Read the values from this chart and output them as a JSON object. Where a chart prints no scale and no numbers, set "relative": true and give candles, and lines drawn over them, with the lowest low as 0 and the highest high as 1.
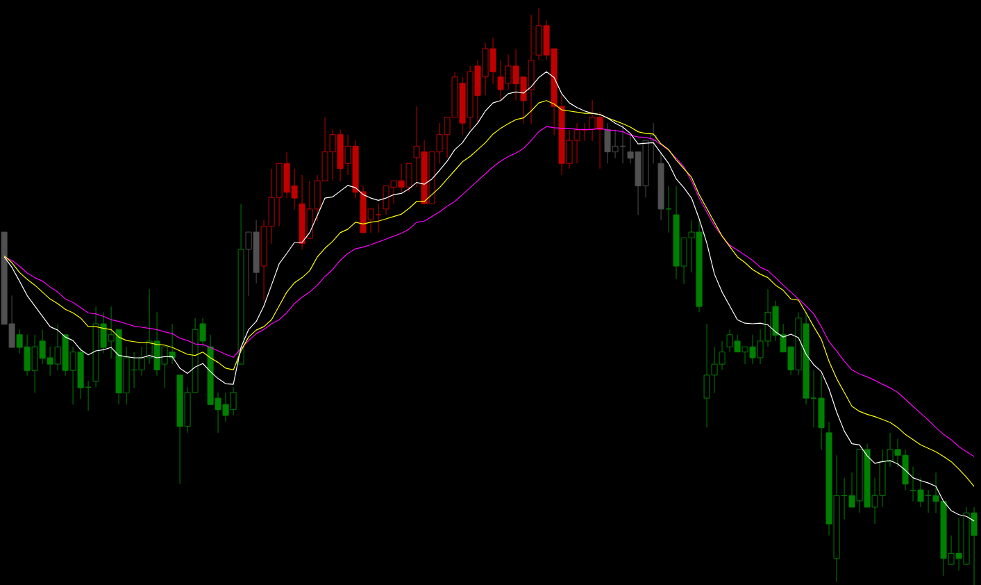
{
  "chart_data": {
    "type": "candlestick",
    "relative": true,
    "categories": [
      null,
      null,
      null,
      null,
      null,
      null,
      null,
      null,
      null,
      null,
      null,
      null,
      null,
      null,
      null,
      null,
      null,
      null,
      null,
      null,
      null,
      null,
      null,
      null,
      null,
      null,
      null,
      null,
      null,
      null,
      null,
      null,
      null,
      null,
      null,
      null,
      null,
      null,
      null,
      null,
      null,
      null,
      null,
      null,
      null,
      null,
      null,
      null,
      null,
      null,
      null,
      null,
      null,
      null,
      null,
      null,
      null,
      null,
      null,
      null,
      null,
      null,
      null,
      null,
      null,
      null,
      null,
      null,
      null,
      null,
      null,
      null,
      null,
      null,
      null,
      null,
      null,
      null,
      null,
      null,
      null,
      null,
      null,
      null,
      null,
      null,
      null,
      null,
      null,
      null,
      null,
      null,
      null,
      null,
      null,
      null,
      null,
      null,
      null,
      null,
      null,
      null,
      null,
      null,
      null,
      null,
      null,
      null,
      null,
      null,
      null,
      null,
      null,
      null,
      null,
      null,
      null,
      null,
      null,
      null,
      null,
      null,
      null,
      null,
      null,
      null,
      null,
      null
    ],
    "ohlc": [
      [
        0.612,
        0.612,
        0.452,
        0.452
      ],
      [
        0.453,
        0.502,
        0.412,
        0.412
      ],
      [
        0.434,
        0.443,
        0.402,
        0.412
      ],
      [
        0.413,
        0.434,
        0.363,
        0.372
      ],
      [
        0.372,
        0.434,
        0.333,
        0.413
      ],
      [
        0.423,
        0.443,
        0.383,
        0.393
      ],
      [
        0.394,
        0.413,
        0.363,
        0.383
      ],
      [
        0.383,
        0.453,
        0.372,
        0.413
      ],
      [
        0.434,
        0.434,
        0.363,
        0.372
      ],
      [
        0.372,
        0.413,
        0.313,
        0.404
      ],
      [
        0.404,
        0.413,
        0.323,
        0.342
      ],
      [
        0.343,
        0.354,
        0.302,
        0.343
      ],
      [
        0.353,
        0.483,
        0.343,
        0.453
      ],
      [
        0.453,
        0.473,
        0.402,
        0.412
      ],
      [
        0.423,
        0.483,
        0.393,
        0.434
      ],
      [
        0.443,
        0.443,
        0.313,
        0.333
      ],
      [
        0.333,
        0.413,
        0.313,
        0.394
      ],
      [
        0.373,
        0.404,
        0.342,
        0.373
      ],
      [
        0.373,
        0.413,
        0.363,
        0.394
      ],
      [
        0.394,
        0.513,
        0.383,
        0.423
      ],
      [
        0.423,
        0.473,
        0.363,
        0.373
      ],
      [
        0.383,
        0.413,
        0.342,
        0.413
      ],
      [
        0.404,
        0.453,
        0.383,
        0.394
      ],
      [
        0.364,
        0.364,
        0.175,
        0.275
      ],
      [
        0.275,
        0.343,
        0.264,
        0.334
      ],
      [
        0.334,
        0.463,
        0.334,
        0.443
      ],
      [
        0.453,
        0.463,
        0.413,
        0.423
      ],
      [
        0.413,
        0.434,
        0.313,
        0.313
      ],
      [
        0.324,
        0.334,
        0.264,
        0.304
      ],
      [
        0.313,
        0.334,
        0.283,
        0.294
      ],
      [
        0.304,
        0.343,
        0.294,
        0.334
      ],
      [
        0.383,
        0.661,
        0.383,
        0.582
      ],
      [
        0.582,
        0.612,
        0.501,
        0.612
      ],
      [
        0.612,
        0.633,
        0.523,
        0.542
      ],
      [
        0.553,
        0.633,
        0.493,
        0.622
      ],
      [
        0.622,
        0.722,
        0.592,
        0.672
      ],
      [
        0.672,
        0.731,
        0.622,
        0.731
      ],
      [
        0.731,
        0.751,
        0.671,
        0.681
      ],
      [
        0.692,
        0.722,
        0.651,
        0.671
      ],
      [
        0.661,
        0.711,
        0.582,
        0.592
      ],
      [
        0.601,
        0.701,
        0.601,
        0.652
      ],
      [
        0.652,
        0.711,
        0.631,
        0.701
      ],
      [
        0.701,
        0.811,
        0.701,
        0.751
      ],
      [
        0.751,
        0.79,
        0.701,
        0.781
      ],
      [
        0.781,
        0.79,
        0.7,
        0.722
      ],
      [
        0.731,
        0.781,
        0.711,
        0.761
      ],
      [
        0.761,
        0.771,
        0.671,
        0.681
      ],
      [
        0.682,
        0.692,
        0.611,
        0.611
      ],
      [
        0.633,
        0.652,
        0.611,
        0.652
      ],
      [
        0.642,
        0.661,
        0.611,
        0.642
      ],
      [
        0.652,
        0.692,
        0.642,
        0.692
      ],
      [
        0.69,
        0.701,
        0.661,
        0.701
      ],
      [
        0.701,
        0.731,
        0.681,
        0.69
      ],
      [
        0.69,
        0.731,
        0.681,
        0.731
      ],
      [
        0.741,
        0.83,
        0.69,
        0.761
      ],
      [
        0.751,
        0.771,
        0.661,
        0.661
      ],
      [
        0.661,
        0.751,
        0.661,
        0.751
      ],
      [
        0.751,
        0.801,
        0.731,
        0.781
      ],
      [
        0.781,
        0.811,
        0.741,
        0.811
      ],
      [
        0.811,
        0.89,
        0.811,
        0.881
      ],
      [
        0.87,
        0.881,
        0.781,
        0.801
      ],
      [
        0.811,
        0.9,
        0.79,
        0.89
      ],
      [
        0.9,
        0.91,
        0.801,
        0.849
      ],
      [
        0.881,
        0.94,
        0.849,
        0.93
      ],
      [
        0.93,
        0.949,
        0.869,
        0.89
      ],
      [
        0.881,
        0.91,
        0.842,
        0.859
      ],
      [
        0.87,
        0.92,
        0.859,
        0.9
      ],
      [
        0.9,
        0.93,
        0.84,
        0.869
      ],
      [
        0.881,
        0.881,
        0.8,
        0.84
      ],
      [
        0.859,
        0.989,
        0.8,
        0.91
      ],
      [
        0.919,
        1.0,
        0.91,
        0.97
      ],
      [
        0.97,
        0.979,
        0.91,
        0.919
      ],
      [
        0.93,
        0.93,
        0.78,
        0.83
      ],
      [
        0.83,
        0.849,
        0.711,
        0.731
      ],
      [
        0.731,
        0.789,
        0.722,
        0.771
      ],
      [
        0.771,
        0.801,
        0.731,
        0.789
      ],
      [
        0.789,
        0.801,
        0.77,
        0.789
      ],
      [
        0.79,
        0.841,
        0.77,
        0.811
      ],
      [
        0.811,
        0.82,
        0.722,
        0.79
      ],
      [
        0.79,
        0.801,
        0.731,
        0.751
      ],
      [
        0.751,
        0.79,
        0.74,
        0.761
      ],
      [
        0.761,
        0.8,
        0.731,
        0.761
      ],
      [
        0.751,
        0.78,
        0.731,
        0.74
      ],
      [
        0.751,
        0.751,
        0.642,
        0.692
      ],
      [
        0.692,
        0.771,
        0.672,
        0.771
      ],
      [
        0.771,
        0.801,
        0.731,
        0.78
      ],
      [
        0.731,
        0.751,
        0.633,
        0.652
      ],
      [
        0.652,
        0.692,
        0.611,
        0.652
      ],
      [
        0.642,
        0.692,
        0.531,
        0.553
      ],
      [
        0.553,
        0.602,
        0.522,
        0.602
      ],
      [
        0.602,
        0.633,
        0.542,
        0.612
      ],
      [
        0.612,
        0.633,
        0.473,
        0.483
      ],
      [
        0.324,
        0.453,
        0.273,
        0.364
      ],
      [
        0.364,
        0.413,
        0.333,
        0.383
      ],
      [
        0.383,
        0.423,
        0.373,
        0.404
      ],
      [
        0.413,
        0.443,
        0.404,
        0.434
      ],
      [
        0.423,
        0.434,
        0.404,
        0.404
      ],
      [
        0.404,
        0.413,
        0.383,
        0.413
      ],
      [
        0.413,
        0.434,
        0.383,
        0.394
      ],
      [
        0.394,
        0.443,
        0.383,
        0.423
      ],
      [
        0.423,
        0.513,
        0.413,
        0.473
      ],
      [
        0.483,
        0.493,
        0.423,
        0.433
      ],
      [
        0.434,
        0.453,
        0.404,
        0.404
      ],
      [
        0.413,
        0.413,
        0.364,
        0.373
      ],
      [
        0.373,
        0.473,
        0.364,
        0.463
      ],
      [
        0.453,
        0.473,
        0.313,
        0.324
      ],
      [
        0.324,
        0.373,
        0.273,
        0.324
      ],
      [
        0.324,
        0.364,
        0.234,
        0.273
      ],
      [
        0.264,
        0.283,
        0.086,
        0.106
      ],
      [
        0.046,
        0.225,
        0.005,
        0.155
      ],
      [
        0.155,
        0.186,
        0.114,
        0.155
      ],
      [
        0.155,
        0.195,
        0.135,
        0.135
      ],
      [
        0.146,
        0.235,
        0.125,
        0.235
      ],
      [
        0.235,
        0.245,
        0.135,
        0.135
      ],
      [
        0.135,
        0.186,
        0.106,
        0.155
      ],
      [
        0.155,
        0.235,
        0.135,
        0.214
      ],
      [
        0.214,
        0.264,
        0.205,
        0.235
      ],
      [
        0.235,
        0.254,
        0.205,
        0.225
      ],
      [
        0.225,
        0.235,
        0.164,
        0.175
      ],
      [
        0.164,
        0.205,
        0.145,
        0.164
      ],
      [
        0.165,
        0.186,
        0.135,
        0.145
      ],
      [
        0.155,
        0.165,
        0.125,
        0.155
      ],
      [
        0.155,
        0.195,
        0.125,
        0.145
      ],
      [
        0.145,
        0.145,
        0.016,
        0.046
      ],
      [
        0.036,
        0.086,
        0.036,
        0.055
      ],
      [
        0.055,
        0.116,
        0.025,
        0.046
      ],
      [
        0.036,
        0.135,
        0.036,
        0.125
      ],
      [
        0.125,
        0.135,
        0.0,
        0.086
      ]
    ],
    "colors": [
      "#505050",
      "#505050",
      "#008000",
      "#008000",
      "#008000",
      "#008000",
      "#008000",
      "#008000",
      "#008000",
      "#008000",
      "#008000",
      "#008000",
      "#008000",
      "#008000",
      "#008000",
      "#008000",
      "#008000",
      "#008000",
      "#008000",
      "#008000",
      "#008000",
      "#008000",
      "#008000",
      "#008000",
      "#008000",
      "#008000",
      "#008000",
      "#008000",
      "#008000",
      "#008000",
      "#008000",
      "#008000",
      "#505050",
      "#505050",
      "#c00000",
      "#c00000",
      "#c00000",
      "#c00000",
      "#c00000",
      "#c00000",
      "#c00000",
      "#c00000",
      "#c00000",
      "#c00000",
      "#c00000",
      "#c00000",
      "#c00000",
      "#c00000",
      "#c00000",
      "#c00000",
      "#c00000",
      "#c00000",
      "#c00000",
      "#c00000",
      "#c00000",
      "#c00000",
      "#c00000",
      "#c00000",
      "#c00000",
      "#c00000",
      "#c00000",
      "#c00000",
      "#c00000",
      "#c00000",
      "#c00000",
      "#c00000",
      "#c00000",
      "#c00000",
      "#c00000",
      "#c00000",
      "#c00000",
      "#c00000",
      "#c00000",
      "#c00000",
      "#c00000",
      "#c00000",
      "#c00000",
      "#c00000",
      "#c00000",
      "#505050",
      "#505050",
      "#505050",
      "#505050",
      "#505050",
      "#505050",
      "#505050",
      "#505050",
      "#008000",
      "#008000",
      "#008000",
      "#008000",
      "#008000",
      "#008000",
      "#008000",
      "#008000",
      "#008000",
      "#008000",
      "#008000",
      "#008000",
      "#008000",
      "#008000",
      "#008000",
      "#008000",
      "#008000",
      "#008000",
      "#008000",
      "#008000",
      "#008000",
      "#008000",
      "#008000",
      "#008000",
      "#008000",
      "#008000",
      "#008000",
      "#008000",
      "#008000",
      "#008000",
      "#008000",
      "#008000",
      "#008000",
      "#008000",
      "#008000",
      "#008000",
      "#008000",
      "#008000",
      "#008000",
      "#008000",
      "#008000"
    ],
    "series": [
      {
        "type": "line",
        "color": "#ff00ff",
        "values": [
          0.569,
          0.563,
          0.553,
          0.541,
          0.533,
          0.527,
          0.517,
          0.508,
          0.496,
          0.49,
          0.481,
          0.472,
          0.47,
          0.466,
          0.46,
          0.457,
          0.453,
          0.449,
          0.447,
          0.445,
          0.443,
          0.439,
          0.436,
          0.428,
          0.424,
          0.418,
          0.417,
          0.412,
          0.406,
          0.4,
          0.395,
          0.41,
          0.424,
          0.436,
          0.443,
          0.453,
          0.46,
          0.472,
          0.488,
          0.499,
          0.508,
          0.52,
          0.535,
          0.547,
          0.563,
          0.575,
          0.583,
          0.586,
          0.59,
          0.595,
          0.6,
          0.605,
          0.61,
          0.617,
          0.629,
          0.631,
          0.639,
          0.647,
          0.657,
          0.665,
          0.677,
          0.689,
          0.701,
          0.713,
          0.725,
          0.735,
          0.743,
          0.749,
          0.757,
          0.771,
          0.786,
          0.795,
          0.793,
          0.792,
          0.792,
          0.79,
          0.79,
          0.79,
          0.792,
          0.789,
          0.788,
          0.786,
          0.78,
          0.777,
          0.776,
          0.773,
          0.764,
          0.754,
          0.74,
          0.725,
          0.701,
          0.671,
          0.647,
          0.623,
          0.605,
          0.589,
          0.581,
          0.572,
          0.563,
          0.551,
          0.545,
          0.533,
          0.52,
          0.508,
          0.496,
          0.484,
          0.47,
          0.448,
          0.422,
          0.406,
          0.388,
          0.373,
          0.366,
          0.361,
          0.355,
          0.348,
          0.342,
          0.334,
          0.322,
          0.31,
          0.298,
          0.286,
          0.273,
          0.261,
          0.252,
          0.24,
          0.231,
          0.223
        ]
      },
      {
        "type": "line",
        "color": "#ffff00",
        "values": [
          0.571,
          0.559,
          0.542,
          0.53,
          0.52,
          0.508,
          0.496,
          0.488,
          0.478,
          0.472,
          0.463,
          0.448,
          0.448,
          0.445,
          0.443,
          0.43,
          0.424,
          0.422,
          0.42,
          0.42,
          0.417,
          0.416,
          0.412,
          0.406,
          0.4,
          0.398,
          0.404,
          0.394,
          0.386,
          0.376,
          0.373,
          0.406,
          0.43,
          0.442,
          0.448,
          0.46,
          0.484,
          0.508,
          0.524,
          0.533,
          0.545,
          0.569,
          0.584,
          0.596,
          0.611,
          0.617,
          0.629,
          0.626,
          0.629,
          0.631,
          0.635,
          0.639,
          0.643,
          0.653,
          0.665,
          0.665,
          0.677,
          0.689,
          0.704,
          0.719,
          0.734,
          0.743,
          0.755,
          0.767,
          0.782,
          0.792,
          0.8,
          0.807,
          0.81,
          0.822,
          0.836,
          0.84,
          0.834,
          0.824,
          0.822,
          0.82,
          0.818,
          0.818,
          0.816,
          0.81,
          0.805,
          0.8,
          0.794,
          0.786,
          0.783,
          0.782,
          0.765,
          0.755,
          0.737,
          0.722,
          0.707,
          0.677,
          0.653,
          0.629,
          0.605,
          0.587,
          0.569,
          0.559,
          0.547,
          0.539,
          0.533,
          0.52,
          0.511,
          0.496,
          0.494,
          0.472,
          0.448,
          0.426,
          0.388,
          0.358,
          0.334,
          0.31,
          0.301,
          0.296,
          0.292,
          0.287,
          0.282,
          0.273,
          0.261,
          0.252,
          0.243,
          0.237,
          0.231,
          0.223,
          0.214,
          0.201,
          0.187,
          0.171
        ]
      },
      {
        "type": "line",
        "color": "#ffffff",
        "values": [
          0.569,
          0.551,
          0.527,
          0.502,
          0.484,
          0.466,
          0.448,
          0.442,
          0.43,
          0.424,
          0.408,
          0.399,
          0.406,
          0.408,
          0.412,
          0.398,
          0.396,
          0.394,
          0.394,
          0.398,
          0.394,
          0.396,
          0.396,
          0.376,
          0.367,
          0.378,
          0.384,
          0.37,
          0.358,
          0.349,
          0.348,
          0.412,
          0.443,
          0.457,
          0.484,
          0.52,
          0.557,
          0.575,
          0.594,
          0.594,
          0.611,
          0.641,
          0.671,
          0.673,
          0.683,
          0.693,
          0.689,
          0.677,
          0.671,
          0.667,
          0.671,
          0.677,
          0.679,
          0.687,
          0.698,
          0.695,
          0.704,
          0.719,
          0.735,
          0.755,
          0.767,
          0.786,
          0.801,
          0.822,
          0.836,
          0.84,
          0.852,
          0.855,
          0.853,
          0.864,
          0.88,
          0.89,
          0.88,
          0.852,
          0.836,
          0.828,
          0.822,
          0.818,
          0.816,
          0.81,
          0.801,
          0.794,
          0.783,
          0.765,
          0.766,
          0.767,
          0.749,
          0.731,
          0.704,
          0.689,
          0.671,
          0.635,
          0.593,
          0.539,
          0.508,
          0.484,
          0.46,
          0.454,
          0.453,
          0.454,
          0.451,
          0.439,
          0.43,
          0.435,
          0.429,
          0.4,
          0.382,
          0.37,
          0.34,
          0.3,
          0.267,
          0.245,
          0.243,
          0.224,
          0.211,
          0.214,
          0.216,
          0.21,
          0.199,
          0.186,
          0.181,
          0.177,
          0.171,
          0.145,
          0.129,
          0.122,
          0.119,
          0.111
        ]
      }
    ]
  }
}
